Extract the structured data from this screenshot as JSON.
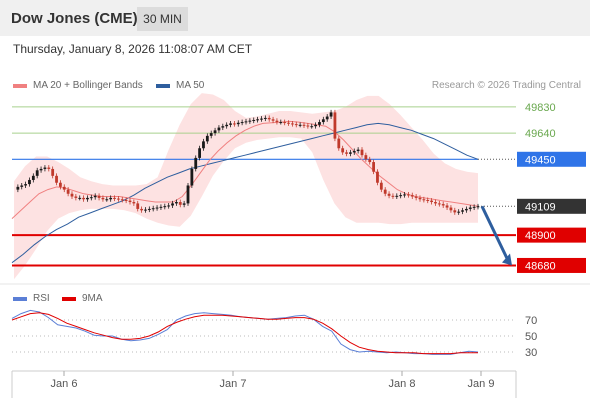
{
  "header": {
    "title": "Dow Jones (CME)",
    "timeframe": "30 MIN"
  },
  "timestamp": "Thursday, January 8, 2026 11:08:07 AM CET",
  "legend": {
    "ma20_label": "MA 20 + Bollinger Bands",
    "ma20_color": "#f08080",
    "ma50_label": "MA 50",
    "ma50_color": "#2e5e9e",
    "credit": "Research © 2026 Trading Central"
  },
  "rsi_legend": {
    "rsi_label": "RSI",
    "rsi_color": "#5b7fd6",
    "ma_label": "9MA",
    "ma_color": "#e00000"
  },
  "chart_data": [
    {
      "type": "line",
      "instrument": "Dow Jones (CME)",
      "timeframe": "30 MIN",
      "ylim": [
        48560,
        49880
      ],
      "xticks": [
        "Jan 6",
        "Jan 7",
        "Jan 8",
        "Jan 9"
      ],
      "last_price": "49109",
      "levels": [
        {
          "value": 49830,
          "label": "49830",
          "kind": "resistance",
          "color": "#a8d08d",
          "text_color": "#6aa84f"
        },
        {
          "value": 49640,
          "label": "49640",
          "kind": "resistance",
          "color": "#a8d08d",
          "text_color": "#6aa84f"
        },
        {
          "value": 49450,
          "label": "49450",
          "kind": "pivot",
          "color": "#2f74e8",
          "text_color": "#ffffff"
        },
        {
          "value": 49109,
          "label": "49109",
          "kind": "last",
          "color": "#333333",
          "text_color": "#ffffff"
        },
        {
          "value": 48900,
          "label": "48900",
          "kind": "support",
          "color": "#e00000",
          "text_color": "#ffffff"
        },
        {
          "value": 48680,
          "label": "48680",
          "kind": "support",
          "color": "#e00000",
          "text_color": "#ffffff"
        }
      ],
      "series": [
        {
          "name": "Price",
          "values": [
            49230,
            49250,
            49260,
            49270,
            49300,
            49330,
            49370,
            49380,
            49390,
            49380,
            49330,
            49280,
            49250,
            49230,
            49200,
            49180,
            49170,
            49170,
            49160,
            49170,
            49175,
            49185,
            49170,
            49160,
            49160,
            49170,
            49165,
            49160,
            49155,
            49150,
            49140,
            49130,
            49090,
            49080,
            49085,
            49090,
            49095,
            49100,
            49105,
            49110,
            49115,
            49130,
            49140,
            49120,
            49130,
            49260,
            49380,
            49460,
            49530,
            49580,
            49620,
            49640,
            49660,
            49680,
            49690,
            49700,
            49710,
            49705,
            49715,
            49720,
            49725,
            49730,
            49735,
            49740,
            49745,
            49750,
            49740,
            49730,
            49720,
            49720,
            49715,
            49710,
            49705,
            49700,
            49700,
            49695,
            49690,
            49690,
            49700,
            49720,
            49740,
            49760,
            49790,
            49600,
            49530,
            49500,
            49490,
            49500,
            49510,
            49520,
            49480,
            49450,
            49430,
            49360,
            49280,
            49230,
            49200,
            49185,
            49180,
            49185,
            49190,
            49195,
            49190,
            49180,
            49170,
            49160,
            49155,
            49150,
            49140,
            49130,
            49125,
            49115,
            49100,
            49080,
            49065,
            49070,
            49080,
            49090,
            49100,
            49105,
            49109
          ]
        },
        {
          "name": "MA 20",
          "values": [
            49020,
            49080,
            49140,
            49200,
            49230,
            49250,
            49240,
            49220,
            49200,
            49190,
            49180,
            49180,
            49180,
            49170,
            49160,
            49150,
            49140,
            49140,
            49140,
            49180,
            49260,
            49350,
            49440,
            49510,
            49570,
            49620,
            49660,
            49690,
            49710,
            49715,
            49720,
            49725,
            49720,
            49710,
            49700,
            49690,
            49650,
            49590,
            49520,
            49450,
            49390,
            49330,
            49280,
            49230,
            49200,
            49180,
            49170,
            49160,
            49150,
            49140,
            49130,
            49120,
            49110
          ]
        },
        {
          "name": "MA 50",
          "values": [
            48700,
            48760,
            48830,
            48890,
            48940,
            48980,
            49030,
            49060,
            49090,
            49120,
            49150,
            49190,
            49240,
            49280,
            49320,
            49350,
            49380,
            49400,
            49420,
            49440,
            49460,
            49480,
            49500,
            49520,
            49540,
            49560,
            49580,
            49600,
            49620,
            49640,
            49660,
            49680,
            49700,
            49710,
            49700,
            49680,
            49660,
            49630,
            49600,
            49560,
            49520,
            49480,
            49450
          ]
        },
        {
          "name": "Bollinger Upper",
          "values": [
            49290,
            49400,
            49470,
            49470,
            49430,
            49380,
            49320,
            49290,
            49270,
            49260,
            49260,
            49260,
            49270,
            49320,
            49520,
            49700,
            49850,
            49930,
            49920,
            49880,
            49800,
            49750,
            49760,
            49780,
            49800,
            49800,
            49790,
            49780,
            49790,
            49800,
            49830,
            49880,
            49910,
            49910,
            49850,
            49770,
            49680,
            49590,
            49490,
            49420,
            49380,
            49360,
            49350
          ]
        },
        {
          "name": "Bollinger Lower",
          "values": [
            48580,
            48680,
            48800,
            48930,
            49020,
            49060,
            49080,
            49090,
            49090,
            49090,
            49080,
            49060,
            49020,
            48990,
            48970,
            48960,
            49040,
            49180,
            49330,
            49440,
            49530,
            49570,
            49590,
            49600,
            49610,
            49610,
            49600,
            49500,
            49300,
            49130,
            49030,
            48990,
            48990,
            48990,
            48980,
            48980,
            48990,
            48990,
            48990,
            48990,
            48990,
            48990,
            48990
          ]
        }
      ],
      "projection": {
        "from": 49109,
        "to": 48680
      }
    },
    {
      "type": "line",
      "name": "RSI",
      "ylim": [
        10,
        95
      ],
      "ticks": [
        30,
        50,
        70
      ],
      "series": [
        {
          "name": "RSI",
          "values": [
            72,
            78,
            82,
            80,
            73,
            64,
            62,
            60,
            56,
            51,
            50,
            50,
            46,
            44,
            45,
            47,
            52,
            58,
            70,
            75,
            78,
            79,
            78,
            77,
            76,
            74,
            73,
            72,
            71,
            72,
            73,
            75,
            76,
            71,
            62,
            56,
            40,
            33,
            30,
            31,
            30,
            29,
            30,
            29,
            28,
            28,
            27,
            27,
            27,
            29,
            31,
            30
          ]
        },
        {
          "name": "9MA",
          "values": [
            70,
            74,
            78,
            79,
            77,
            72,
            66,
            62,
            58,
            54,
            51,
            48,
            46,
            46,
            47,
            50,
            55,
            62,
            67,
            71,
            74,
            76,
            76,
            76,
            75,
            74,
            73,
            72,
            71,
            71,
            72,
            73,
            73,
            71,
            66,
            59,
            50,
            42,
            36,
            33,
            31,
            30,
            29,
            29,
            29,
            28,
            28,
            28,
            28,
            29,
            29,
            29
          ]
        }
      ]
    }
  ]
}
